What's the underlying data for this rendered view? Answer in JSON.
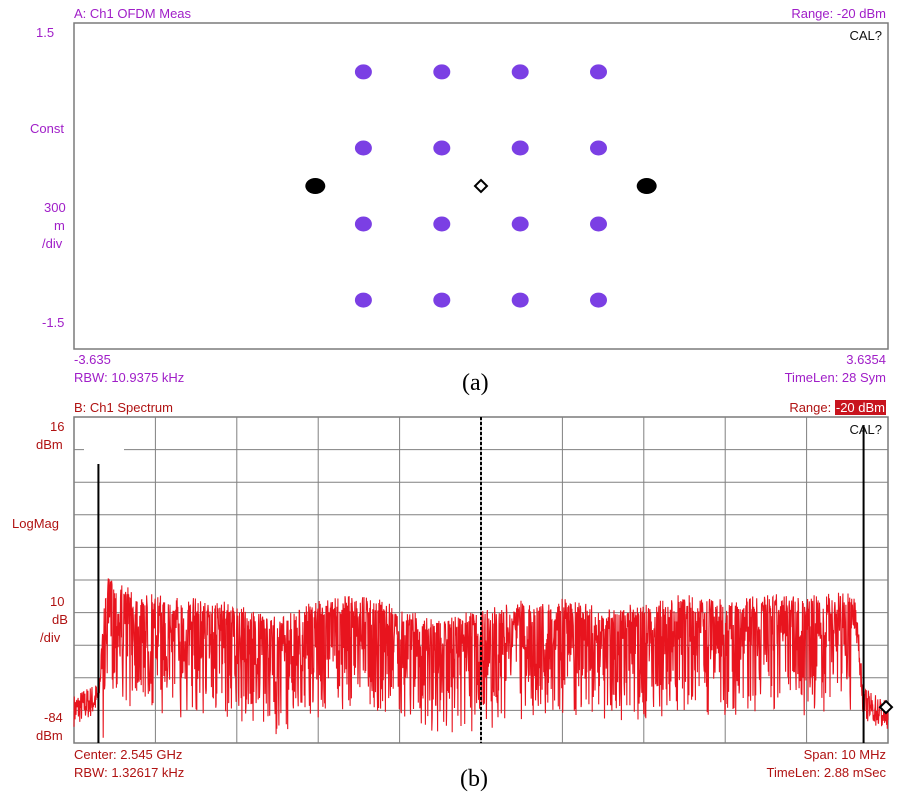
{
  "panel_a": {
    "title": "A: Ch1 OFDM Meas",
    "range_label": "Range: -20 dBm",
    "cal": "CAL?",
    "y_top": "1.5",
    "y_name": "Const",
    "y_scale": [
      "300",
      "m",
      "/div"
    ],
    "y_bottom": "-1.5",
    "x_left": "-3.635",
    "x_right": "3.6354",
    "rbw": "RBW: 10.9375 kHz",
    "timelen": "TimeLen: 28  Sym",
    "caption": "(a)"
  },
  "panel_b": {
    "title": "B: Ch1 Spectrum",
    "range_prefix": "Range: ",
    "range_value": "-20 dBm",
    "cal": "CAL?",
    "y_top_value": "16",
    "y_top_unit": "dBm",
    "y_name": "LogMag",
    "y_scale": [
      "10",
      "dB",
      "/div"
    ],
    "y_bottom_value": "-84",
    "y_bottom_unit": "dBm",
    "center": "Center: 2.545 GHz",
    "span": "Span: 10 MHz",
    "rbw": "RBW: 1.32617 kHz",
    "timelen": "TimeLen: 2.88 mSec",
    "caption": "(b)"
  },
  "colors": {
    "constellation_point": "#7b3fe4",
    "pilot_point": "#000000",
    "trace": "#e8141e",
    "grid": "#808080",
    "label_a": "#a01ec8",
    "label_b": "#b01212"
  },
  "chart_data": [
    {
      "type": "scatter",
      "title": "A: Ch1 OFDM Meas",
      "xlabel": "",
      "ylabel": "Const",
      "xlim": [
        -3.635,
        3.6354
      ],
      "ylim": [
        -1.5,
        1.5
      ],
      "grid": false,
      "series": [
        {
          "x": [
            -1.05,
            -0.35,
            0.35,
            1.05,
            -1.05,
            -0.35,
            0.35,
            1.05,
            -1.05,
            -0.35,
            0.35,
            1.05,
            -1.05,
            -0.35,
            0.35,
            1.05
          ],
          "y": [
            1.05,
            1.05,
            1.05,
            1.05,
            0.35,
            0.35,
            0.35,
            0.35,
            -0.35,
            -0.35,
            -0.35,
            -0.35,
            -1.05,
            -1.05,
            -1.05,
            -1.05
          ]
        },
        {
          "x": [
            -1.48,
            1.48
          ],
          "y": [
            0.0,
            0.0
          ]
        }
      ],
      "marker": {
        "x": 0.0,
        "y": 0.0
      }
    },
    {
      "type": "line",
      "title": "B: Ch1 Spectrum",
      "xlabel": "",
      "ylabel": "LogMag",
      "xlim": [
        2.54,
        2.55
      ],
      "ylim": [
        -84,
        16
      ],
      "y_unit": "dBm",
      "grid": true,
      "series": [
        {
          "x": [
            2.54,
            2.5403,
            2.5404,
            2.541,
            2.5415,
            2.542,
            2.5425,
            2.543,
            2.5435,
            2.544,
            2.5445,
            2.545,
            2.5455,
            2.546,
            2.5465,
            2.547,
            2.5475,
            2.548,
            2.5485,
            2.549,
            2.5495,
            2.5496,
            2.5497,
            2.55
          ],
          "y": [
            -74,
            -70,
            -40,
            -45,
            -46,
            -48,
            -52,
            -47,
            -44,
            -49,
            -52,
            -50,
            -47,
            -46,
            -49,
            -48,
            -45,
            -47,
            -45,
            -46,
            -44,
            -44,
            -72,
            -76
          ]
        }
      ],
      "markers_vertical_x": [
        2.5403,
        2.545,
        2.5497
      ],
      "marker": {
        "x": 2.55,
        "y": -73
      }
    }
  ]
}
